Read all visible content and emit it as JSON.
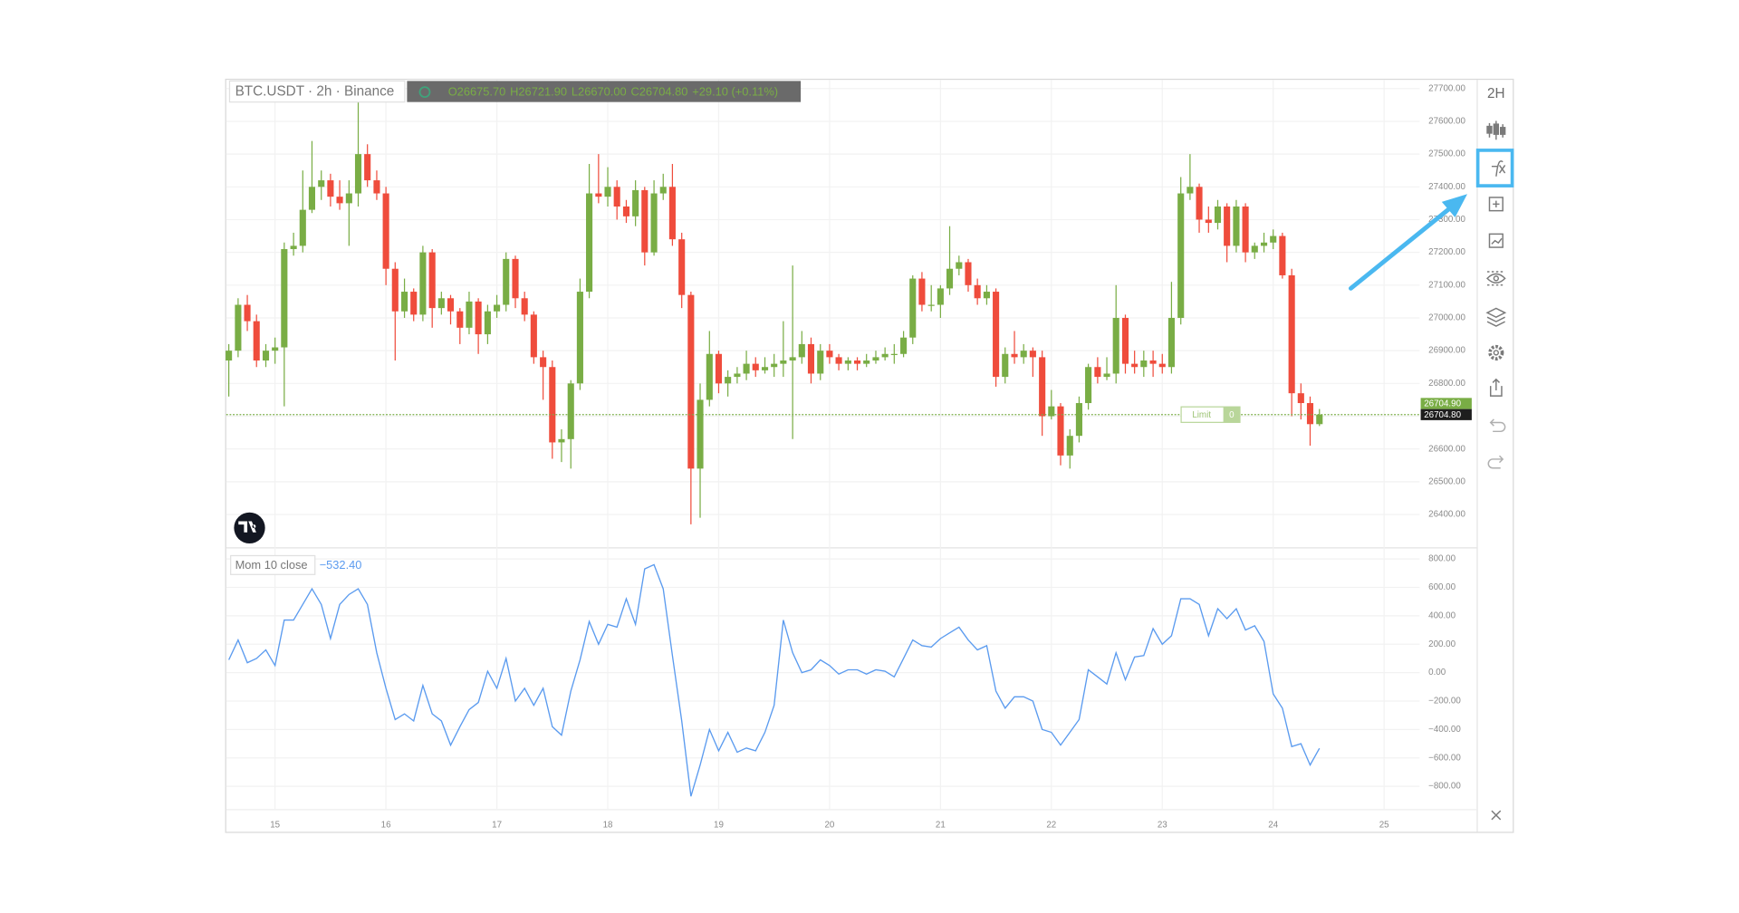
{
  "chart_data": {
    "type": "candlestick",
    "title": "BTC.USDT · 2h · Binance",
    "ohlc_legend": [
      "O26675.70",
      "H26721.90",
      "L26670.00",
      "C26704.80",
      "+29.10 (+0.11%)"
    ],
    "colors": {
      "up": "#79ad45",
      "down": "#ef4c3c"
    },
    "x": [
      14.583,
      14.667,
      14.75,
      14.833,
      14.917,
      15,
      15.083,
      15.167,
      15.25,
      15.333,
      15.417,
      15.5,
      15.583,
      15.667,
      15.75,
      15.833,
      15.917,
      16,
      16.083,
      16.167,
      16.25,
      16.333,
      16.417,
      16.5,
      16.583,
      16.667,
      16.75,
      16.833,
      16.917,
      17,
      17.083,
      17.167,
      17.25,
      17.333,
      17.417,
      17.5,
      17.583,
      17.667,
      17.75,
      17.833,
      17.917,
      18,
      18.083,
      18.167,
      18.25,
      18.333,
      18.417,
      18.5,
      18.583,
      18.667,
      18.75,
      18.833,
      18.917,
      19,
      19.083,
      19.167,
      19.25,
      19.333,
      19.417,
      19.5,
      19.583,
      19.667,
      19.75,
      19.833,
      19.917,
      20,
      20.083,
      20.167,
      20.25,
      20.333,
      20.417,
      20.5,
      20.583,
      20.667,
      20.75,
      20.833,
      20.917,
      21,
      21.083,
      21.167,
      21.25,
      21.333,
      21.417,
      21.5,
      21.583,
      21.667,
      21.75,
      21.833,
      21.917,
      22,
      22.083,
      22.167,
      22.25,
      22.333,
      22.417,
      22.5,
      22.583,
      22.667,
      22.75,
      22.833,
      22.917,
      23,
      23.083,
      23.167,
      23.25,
      23.333,
      23.417,
      23.5,
      23.583,
      23.667,
      23.75,
      23.833,
      23.917,
      24,
      24.083,
      24.167,
      24.25,
      24.333,
      24.417
    ],
    "ohlc": [
      [
        26870,
        26920,
        26760,
        26900
      ],
      [
        26900,
        27060,
        26880,
        27040
      ],
      [
        27040,
        27070,
        26960,
        26990
      ],
      [
        26990,
        27010,
        26850,
        26870
      ],
      [
        26870,
        26920,
        26850,
        26900
      ],
      [
        26900,
        26940,
        26860,
        26910
      ],
      [
        26910,
        27230,
        26730,
        27210
      ],
      [
        27210,
        27260,
        27190,
        27220
      ],
      [
        27220,
        27450,
        27200,
        27330
      ],
      [
        27330,
        27540,
        27320,
        27400
      ],
      [
        27400,
        27450,
        27360,
        27420
      ],
      [
        27420,
        27440,
        27340,
        27370
      ],
      [
        27370,
        27420,
        27330,
        27350
      ],
      [
        27350,
        27420,
        27220,
        27380
      ],
      [
        27380,
        27690,
        27340,
        27500
      ],
      [
        27500,
        27530,
        27400,
        27420
      ],
      [
        27420,
        27450,
        27360,
        27380
      ],
      [
        27380,
        27400,
        27100,
        27150
      ],
      [
        27150,
        27170,
        26870,
        27020
      ],
      [
        27020,
        27120,
        27000,
        27080
      ],
      [
        27080,
        27090,
        26990,
        27010
      ],
      [
        27010,
        27220,
        26990,
        27200
      ],
      [
        27200,
        27210,
        26970,
        27030
      ],
      [
        27030,
        27080,
        27010,
        27060
      ],
      [
        27060,
        27070,
        26980,
        27020
      ],
      [
        27020,
        27030,
        26920,
        26970
      ],
      [
        26970,
        27080,
        26950,
        27050
      ],
      [
        27050,
        27060,
        26890,
        26950
      ],
      [
        26950,
        27040,
        26920,
        27020
      ],
      [
        27020,
        27070,
        27000,
        27040
      ],
      [
        27040,
        27200,
        27020,
        27180
      ],
      [
        27180,
        27190,
        27030,
        27060
      ],
      [
        27060,
        27080,
        26990,
        27010
      ],
      [
        27010,
        27020,
        26860,
        26880
      ],
      [
        26880,
        26900,
        26750,
        26850
      ],
      [
        26850,
        26870,
        26570,
        26620
      ],
      [
        26620,
        26660,
        26560,
        26630
      ],
      [
        26630,
        26810,
        26540,
        26800
      ],
      [
        26800,
        27120,
        26780,
        27080
      ],
      [
        27080,
        27470,
        27060,
        27380
      ],
      [
        27380,
        27500,
        27350,
        27370
      ],
      [
        27370,
        27460,
        27340,
        27400
      ],
      [
        27400,
        27420,
        27300,
        27340
      ],
      [
        27340,
        27360,
        27290,
        27310
      ],
      [
        27310,
        27420,
        27280,
        27390
      ],
      [
        27390,
        27400,
        27160,
        27200
      ],
      [
        27200,
        27420,
        27190,
        27380
      ],
      [
        27380,
        27440,
        27360,
        27400
      ],
      [
        27400,
        27470,
        27220,
        27240
      ],
      [
        27240,
        27260,
        27030,
        27070
      ],
      [
        27070,
        27080,
        26370,
        26540
      ],
      [
        26540,
        26800,
        26390,
        26750
      ],
      [
        26750,
        26960,
        26730,
        26890
      ],
      [
        26890,
        26900,
        26770,
        26800
      ],
      [
        26800,
        26840,
        26760,
        26820
      ],
      [
        26820,
        26850,
        26800,
        26830
      ],
      [
        26830,
        26900,
        26810,
        26860
      ],
      [
        26860,
        26880,
        26820,
        26840
      ],
      [
        26840,
        26880,
        26830,
        26850
      ],
      [
        26850,
        26890,
        26820,
        26860
      ],
      [
        26860,
        26990,
        26820,
        26870
      ],
      [
        26870,
        27160,
        26630,
        26880
      ],
      [
        26880,
        26960,
        26860,
        26920
      ],
      [
        26920,
        26940,
        26800,
        26830
      ],
      [
        26830,
        26920,
        26810,
        26900
      ],
      [
        26900,
        26920,
        26860,
        26880
      ],
      [
        26880,
        26890,
        26840,
        26860
      ],
      [
        26860,
        26880,
        26840,
        26870
      ],
      [
        26870,
        26880,
        26840,
        26860
      ],
      [
        26860,
        26890,
        26850,
        26870
      ],
      [
        26870,
        26900,
        26860,
        26880
      ],
      [
        26880,
        26910,
        26870,
        26890
      ],
      [
        26890,
        26920,
        26860,
        26890
      ],
      [
        26890,
        26960,
        26880,
        26940
      ],
      [
        26940,
        27130,
        26920,
        27120
      ],
      [
        27120,
        27140,
        27020,
        27040
      ],
      [
        27040,
        27100,
        27020,
        27040
      ],
      [
        27040,
        27100,
        27000,
        27090
      ],
      [
        27090,
        27280,
        27070,
        27150
      ],
      [
        27150,
        27190,
        27130,
        27170
      ],
      [
        27170,
        27180,
        27080,
        27100
      ],
      [
        27100,
        27120,
        27040,
        27060
      ],
      [
        27060,
        27100,
        27040,
        27080
      ],
      [
        27080,
        27090,
        26790,
        26820
      ],
      [
        26820,
        26910,
        26800,
        26890
      ],
      [
        26890,
        26960,
        26860,
        26880
      ],
      [
        26880,
        26920,
        26860,
        26900
      ],
      [
        26900,
        26910,
        26820,
        26880
      ],
      [
        26880,
        26900,
        26640,
        26700
      ],
      [
        26700,
        26780,
        26690,
        26730
      ],
      [
        26730,
        26740,
        26550,
        26580
      ],
      [
        26580,
        26660,
        26540,
        26640
      ],
      [
        26640,
        26760,
        26620,
        26740
      ],
      [
        26740,
        26860,
        26720,
        26850
      ],
      [
        26850,
        26880,
        26800,
        26820
      ],
      [
        26820,
        26880,
        26810,
        26830
      ],
      [
        26830,
        27100,
        26800,
        27000
      ],
      [
        27000,
        27010,
        26830,
        26860
      ],
      [
        26860,
        26900,
        26830,
        26850
      ],
      [
        26850,
        26900,
        26820,
        26870
      ],
      [
        26870,
        26900,
        26820,
        26860
      ],
      [
        26860,
        26890,
        26830,
        26850
      ],
      [
        26850,
        27110,
        26830,
        27000
      ],
      [
        27000,
        27430,
        26980,
        27380
      ],
      [
        27380,
        27500,
        27360,
        27400
      ],
      [
        27400,
        27410,
        27260,
        27300
      ],
      [
        27300,
        27340,
        27260,
        27290
      ],
      [
        27290,
        27360,
        27270,
        27340
      ],
      [
        27340,
        27350,
        27170,
        27220
      ],
      [
        27220,
        27360,
        27200,
        27340
      ],
      [
        27340,
        27350,
        27170,
        27200
      ],
      [
        27200,
        27230,
        27180,
        27220
      ],
      [
        27220,
        27260,
        27200,
        27230
      ],
      [
        27230,
        27270,
        27210,
        27250
      ],
      [
        27250,
        27260,
        27120,
        27130
      ],
      [
        27130,
        27150,
        26700,
        26770
      ],
      [
        26770,
        26800,
        26690,
        26740
      ],
      [
        26740,
        26760,
        26610,
        26675.7
      ],
      [
        26675.7,
        26721.9,
        26670,
        26704.8
      ]
    ],
    "xlim": [
      14.55,
      25.32
    ],
    "xticks": [
      15,
      16,
      17,
      18,
      19,
      20,
      21,
      22,
      23,
      24,
      25
    ],
    "ylim": [
      26298,
      27730
    ],
    "yticks": [
      {
        "value": 27700,
        "label": "27700.00"
      },
      {
        "value": 27600,
        "label": "27600.00"
      },
      {
        "value": 27500,
        "label": "27500.00"
      },
      {
        "value": 27400,
        "label": "27400.00"
      },
      {
        "value": 27300,
        "label": "27300.00"
      },
      {
        "value": 27200,
        "label": "27200.00"
      },
      {
        "value": 27100,
        "label": "27100.00"
      },
      {
        "value": 27000,
        "label": "27000.00"
      },
      {
        "value": 26900,
        "label": "26900.00"
      },
      {
        "value": 26800,
        "label": "26800.00"
      },
      {
        "value": 26700,
        "label": "26700.00"
      },
      {
        "value": 26600,
        "label": "26600.00"
      },
      {
        "value": 26500,
        "label": "26500.00"
      },
      {
        "value": 26400,
        "label": "26400.00"
      }
    ],
    "grid": true,
    "price_markers": [
      {
        "value": 26704.9,
        "label": "26704.90",
        "color": "#79ad45"
      },
      {
        "value": 26704.8,
        "label": "26704.80",
        "color": "#1e1e1e"
      }
    ],
    "order": {
      "label": "Limit",
      "quantity": 0
    },
    "indicator": {
      "type": "line",
      "name": "Mom 10 close",
      "value_label": "−532.40",
      "color": "#5b9bef",
      "values": [
        90,
        230,
        70,
        100,
        160,
        50,
        370,
        370,
        480,
        590,
        480,
        240,
        480,
        550,
        590,
        480,
        140,
        -110,
        -330,
        -290,
        -340,
        -90,
        -290,
        -340,
        -510,
        -380,
        -260,
        -210,
        10,
        -110,
        100,
        -200,
        -110,
        -230,
        -110,
        -380,
        -440,
        -130,
        90,
        360,
        200,
        340,
        320,
        520,
        340,
        730,
        760,
        590,
        120,
        -340,
        -870,
        -650,
        -400,
        -550,
        -420,
        -560,
        -530,
        -550,
        -420,
        -230,
        370,
        140,
        0,
        20,
        90,
        50,
        -10,
        20,
        20,
        -10,
        20,
        10,
        -30,
        100,
        230,
        190,
        180,
        240,
        280,
        320,
        230,
        160,
        190,
        -130,
        -250,
        -170,
        -170,
        -200,
        -400,
        -420,
        -510,
        -420,
        -330,
        20,
        -30,
        -80,
        140,
        -50,
        110,
        120,
        310,
        200,
        260,
        520,
        520,
        480,
        260,
        450,
        380,
        450,
        300,
        330,
        220,
        -150,
        -250,
        -520,
        -500,
        -650,
        -532.4
      ],
      "ylim": [
        -964,
        878
      ],
      "yticks": [
        {
          "value": 800,
          "label": "800.00"
        },
        {
          "value": 600,
          "label": "600.00"
        },
        {
          "value": 400,
          "label": "400.00"
        },
        {
          "value": 200,
          "label": "200.00"
        },
        {
          "value": 0,
          "label": "0.00"
        },
        {
          "value": -200,
          "label": "−200.00"
        },
        {
          "value": -400,
          "label": "−400.00"
        },
        {
          "value": -600,
          "label": "−600.00"
        },
        {
          "value": -800,
          "label": "−800.00"
        }
      ]
    }
  },
  "toolbar": {
    "interval": "2H"
  }
}
